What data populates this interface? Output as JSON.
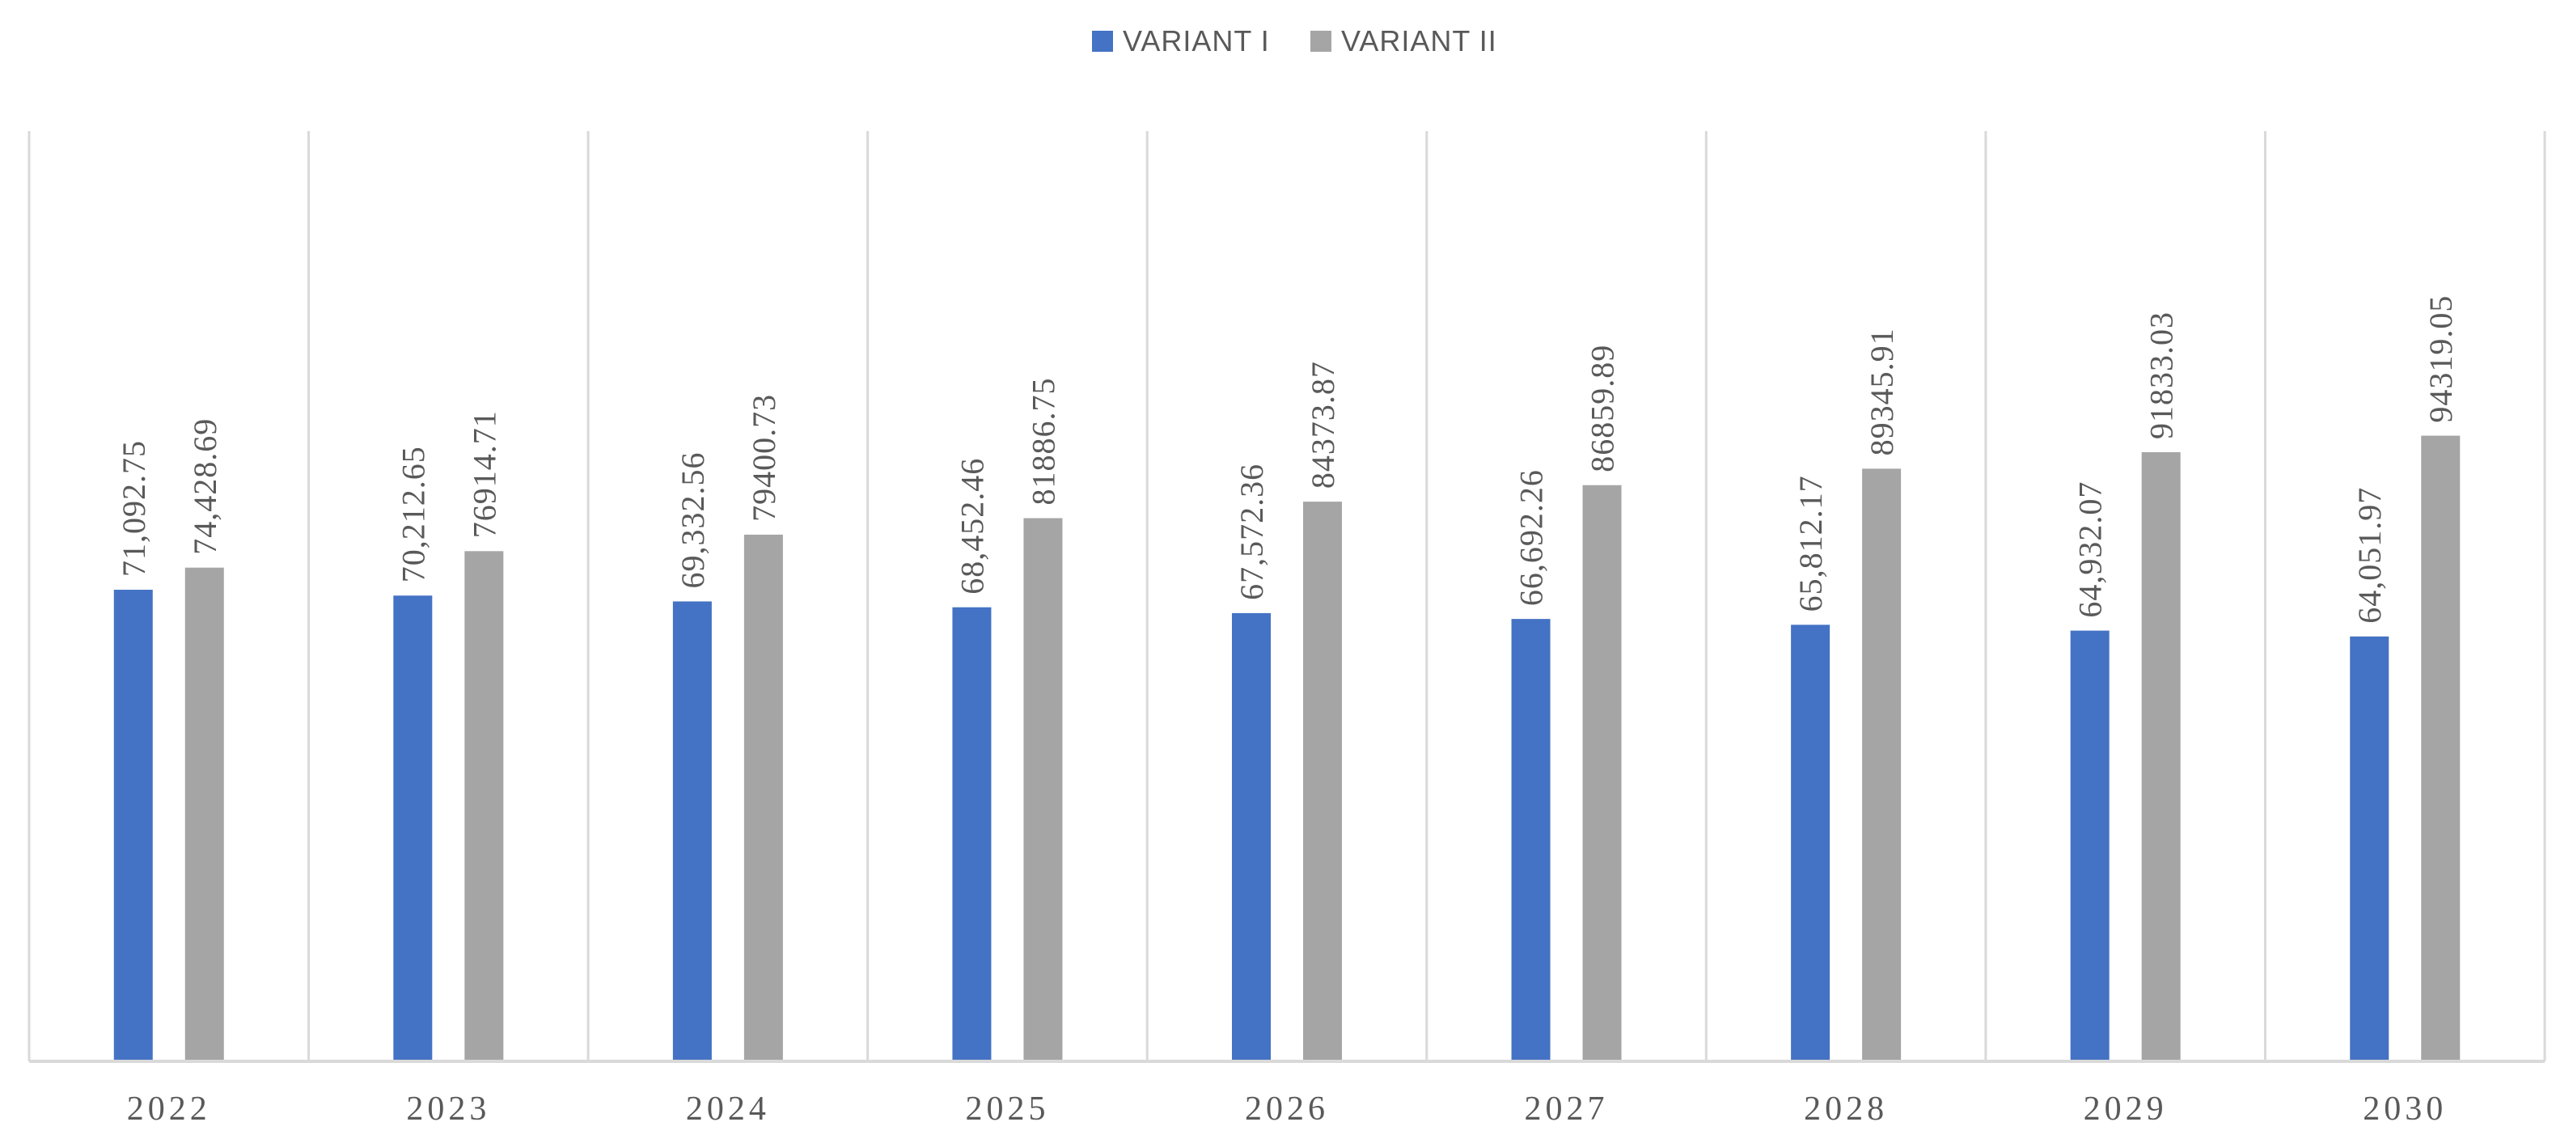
{
  "chart_data": {
    "type": "bar",
    "categories": [
      "2022",
      "2023",
      "2024",
      "2025",
      "2026",
      "2027",
      "2028",
      "2029",
      "2030"
    ],
    "series": [
      {
        "name": "VARIANT I",
        "color": "#4472c4",
        "values": [
          71092.75,
          70212.65,
          69332.56,
          68452.46,
          67572.36,
          66692.26,
          65812.17,
          64932.07,
          64051.97
        ],
        "labels": [
          "71,092.75",
          "70,212.65",
          "69,332.56",
          "68,452.46",
          "67,572.36",
          "66,692.26",
          "65,812.17",
          "64,932.07",
          "64,051.97"
        ]
      },
      {
        "name": "VARIANT II",
        "color": "#a5a5a5",
        "values": [
          74428.69,
          76914.71,
          79400.73,
          81886.75,
          84373.87,
          86859.89,
          89345.91,
          91833.03,
          94319.05
        ],
        "labels": [
          "74,428.69",
          "76914.71",
          "79400.73",
          "81886.75",
          "84373.87",
          "86859.89",
          "89345.91",
          "91833.03",
          "94319.05"
        ]
      }
    ],
    "ylim": [
      0,
      114000
    ],
    "legend_position": "top-center",
    "grid": "vertical category separators"
  }
}
